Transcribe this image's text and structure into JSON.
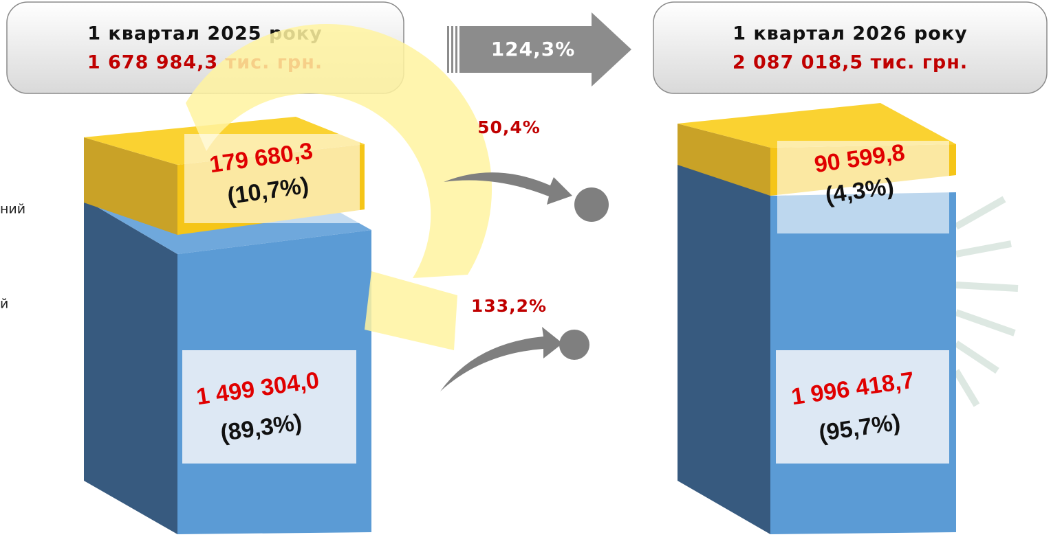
{
  "left_header": {
    "period": "1 квартал 2025 року",
    "total": "1 678 984,3 тис. грн."
  },
  "growth_total": "124,3%",
  "right_header": {
    "period": "1 квартал 2026 року",
    "total": "2 087 018,5 тис. грн."
  },
  "left_box": {
    "top": {
      "value": "179 680,3",
      "share": "(10,7%)"
    },
    "bottom": {
      "value": "1 499 304,0",
      "share": "(89,3%)"
    }
  },
  "right_box": {
    "top": {
      "value": "90 599,8",
      "share": "(4,3%)"
    },
    "bottom": {
      "value": "1 996 418,7",
      "share": "(95,7%)"
    }
  },
  "growth_top": "50,4%",
  "growth_bottom": "133,2%",
  "side_labels": [
    "ний",
    "й"
  ]
}
